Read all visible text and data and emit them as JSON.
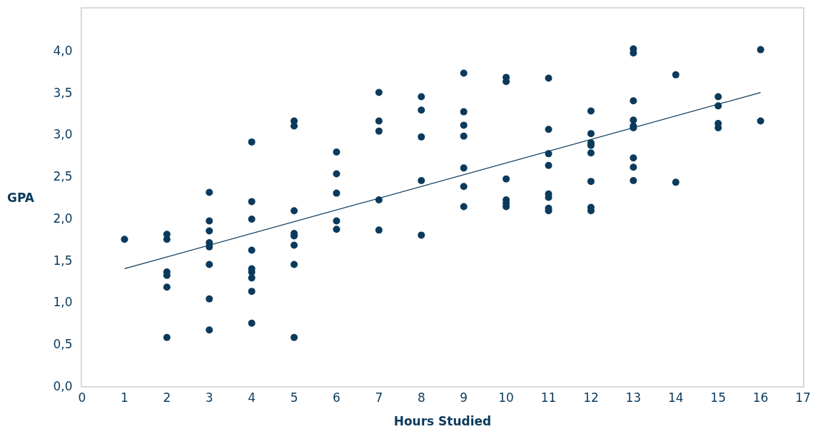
{
  "chart_data": {
    "type": "scatter",
    "xlabel": "Hours Studied",
    "ylabel": "GPA",
    "xlim": [
      0,
      17
    ],
    "xticks": [
      0,
      1,
      2,
      3,
      4,
      5,
      6,
      7,
      8,
      9,
      10,
      11,
      12,
      13,
      14,
      15,
      16,
      17
    ],
    "ylim": [
      0,
      4.5
    ],
    "yticks": [
      {
        "value": 0,
        "label": "0,0"
      },
      {
        "value": 0.5,
        "label": "0,5"
      },
      {
        "value": 1,
        "label": "1,0"
      },
      {
        "value": 1.5,
        "label": "1,5"
      },
      {
        "value": 2,
        "label": "2,0"
      },
      {
        "value": 2.5,
        "label": "2,5"
      },
      {
        "value": 3,
        "label": "3,0"
      },
      {
        "value": 3.5,
        "label": "3,5"
      },
      {
        "value": 4,
        "label": "4,0"
      }
    ],
    "marker": "circle",
    "series": [
      {
        "color": "#0b3a5c",
        "x": [
          1,
          2,
          2,
          2,
          2,
          2,
          2,
          3,
          3,
          3,
          3,
          3,
          3,
          3,
          3,
          4,
          4,
          4,
          4,
          4,
          4,
          4,
          4,
          4,
          5,
          5,
          5,
          5,
          5,
          5,
          5,
          5,
          6,
          6,
          6,
          6,
          6,
          7,
          7,
          7,
          7,
          7,
          8,
          8,
          8,
          8,
          8,
          9,
          9,
          9,
          9,
          9,
          9,
          9,
          10,
          10,
          10,
          10,
          10,
          10,
          11,
          11,
          11,
          11,
          11,
          11,
          11,
          11,
          12,
          12,
          12,
          12,
          12,
          12,
          12,
          12,
          13,
          13,
          13,
          13,
          13,
          13,
          13,
          13,
          13,
          14,
          14,
          15,
          15,
          15,
          15,
          16,
          16
        ],
        "values": [
          1.75,
          1.81,
          1.75,
          1.36,
          1.32,
          1.18,
          0.58,
          2.31,
          1.97,
          1.85,
          1.71,
          1.66,
          1.45,
          1.04,
          0.67,
          2.91,
          2.2,
          1.99,
          1.62,
          1.4,
          1.36,
          1.29,
          1.13,
          0.75,
          3.16,
          3.1,
          2.09,
          1.82,
          1.79,
          1.68,
          1.45,
          0.58,
          2.79,
          2.53,
          2.3,
          1.97,
          1.87,
          3.5,
          3.16,
          3.04,
          2.22,
          1.86,
          3.45,
          3.29,
          2.97,
          2.45,
          1.8,
          3.73,
          3.27,
          3.11,
          2.98,
          2.6,
          2.38,
          2.14,
          3.68,
          3.63,
          2.47,
          2.22,
          2.18,
          2.14,
          3.67,
          3.06,
          2.77,
          2.63,
          2.29,
          2.25,
          2.12,
          2.09,
          3.28,
          3.01,
          2.9,
          2.87,
          2.78,
          2.44,
          2.13,
          2.09,
          4.02,
          3.97,
          3.4,
          3.17,
          3.1,
          3.08,
          2.72,
          2.61,
          2.45,
          3.71,
          2.43,
          3.45,
          3.34,
          3.13,
          3.08,
          4.01,
          3.16
        ]
      },
      {
        "type": "line",
        "color": "#0b3a5c",
        "marker": "none",
        "x": [
          1,
          16
        ],
        "values": [
          1.4,
          3.5
        ]
      }
    ]
  }
}
